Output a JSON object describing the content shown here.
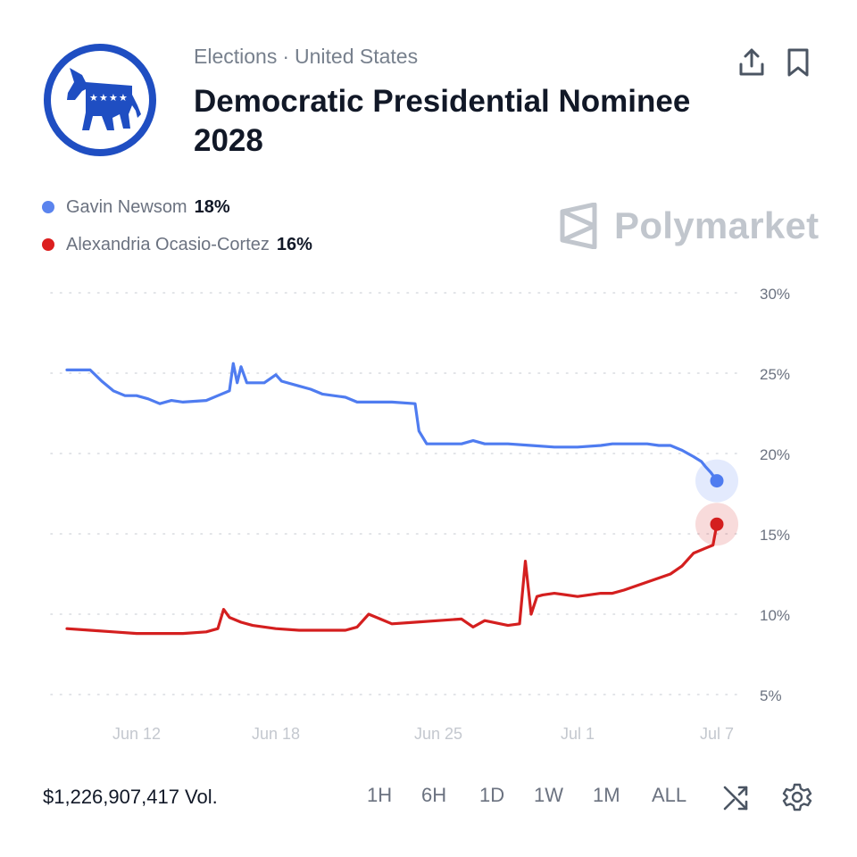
{
  "header": {
    "breadcrumb": [
      "Elections",
      "United States"
    ],
    "breadcrumb_separator": "·",
    "title": "Democratic Presidential Nominee 2028",
    "logo_icon": "democratic-donkey-icon",
    "actions": [
      {
        "name": "share",
        "icon": "share-upload-icon"
      },
      {
        "name": "bookmark",
        "icon": "bookmark-icon"
      }
    ]
  },
  "legend": [
    {
      "name": "Gavin Newsom",
      "value": "18%",
      "color": "#4f7cf0"
    },
    {
      "name": "Alexandria Ocasio-Cortez",
      "value": "16%",
      "color": "#dc2020"
    }
  ],
  "watermark": "Polymarket",
  "colors": {
    "newsom": "#4f7cf0",
    "aoc": "#d41f1f",
    "grid": "#d8dbe0",
    "tick": "#6b7280",
    "tick_light": "#c4c8cf"
  },
  "chart_data": {
    "type": "line",
    "x_unit": "date",
    "xlim": [
      "2025-06-08",
      "2025-07-07"
    ],
    "ylim": [
      5,
      30
    ],
    "y_ticks": [
      "30%",
      "25%",
      "20%",
      "15%",
      "10%",
      "5%"
    ],
    "y_tick_values": [
      30,
      25,
      20,
      15,
      10,
      5
    ],
    "x_ticks": [
      "Jun 12",
      "Jun 18",
      "Jun 25",
      "Jul 1",
      "Jul 7"
    ],
    "x_tick_dates": [
      "2025-06-12",
      "2025-06-18",
      "2025-06-25",
      "2025-07-01",
      "2025-07-07"
    ],
    "grid": "horizontal dotted",
    "series": [
      {
        "name": "Gavin Newsom",
        "color": "#4f7cf0",
        "points": [
          [
            "2025-06-09",
            25.2
          ],
          [
            "2025-06-10",
            25.2
          ],
          [
            "2025-06-10 12:00",
            24.5
          ],
          [
            "2025-06-11",
            23.9
          ],
          [
            "2025-06-11 12:00",
            23.6
          ],
          [
            "2025-06-12",
            23.6
          ],
          [
            "2025-06-12 12:00",
            23.4
          ],
          [
            "2025-06-13",
            23.1
          ],
          [
            "2025-06-13 12:00",
            23.3
          ],
          [
            "2025-06-14",
            23.2
          ],
          [
            "2025-06-15",
            23.3
          ],
          [
            "2025-06-15 12:00",
            23.6
          ],
          [
            "2025-06-16",
            23.9
          ],
          [
            "2025-06-16 04:00",
            25.6
          ],
          [
            "2025-06-16 08:00",
            24.4
          ],
          [
            "2025-06-16 12:00",
            25.4
          ],
          [
            "2025-06-16 18:00",
            24.4
          ],
          [
            "2025-06-17 12:00",
            24.4
          ],
          [
            "2025-06-18",
            24.9
          ],
          [
            "2025-06-18 06:00",
            24.5
          ],
          [
            "2025-06-19",
            24.2
          ],
          [
            "2025-06-19 12:00",
            24.0
          ],
          [
            "2025-06-20",
            23.7
          ],
          [
            "2025-06-21",
            23.5
          ],
          [
            "2025-06-21 12:00",
            23.2
          ],
          [
            "2025-06-23",
            23.2
          ],
          [
            "2025-06-24",
            23.1
          ],
          [
            "2025-06-24 04:00",
            21.4
          ],
          [
            "2025-06-24 12:00",
            20.6
          ],
          [
            "2025-06-25",
            20.6
          ],
          [
            "2025-06-26",
            20.6
          ],
          [
            "2025-06-26 12:00",
            20.8
          ],
          [
            "2025-06-27",
            20.6
          ],
          [
            "2025-06-28",
            20.6
          ],
          [
            "2025-06-29",
            20.5
          ],
          [
            "2025-06-30",
            20.4
          ],
          [
            "2025-07-01",
            20.4
          ],
          [
            "2025-07-02",
            20.5
          ],
          [
            "2025-07-02 12:00",
            20.6
          ],
          [
            "2025-07-03",
            20.6
          ],
          [
            "2025-07-04",
            20.6
          ],
          [
            "2025-07-04 12:00",
            20.5
          ],
          [
            "2025-07-05",
            20.5
          ],
          [
            "2025-07-05 12:00",
            20.2
          ],
          [
            "2025-07-06",
            19.8
          ],
          [
            "2025-07-06 08:00",
            19.5
          ],
          [
            "2025-07-06 12:00",
            19.2
          ],
          [
            "2025-07-06 18:00",
            18.8
          ],
          [
            "2025-07-07",
            18.3
          ]
        ]
      },
      {
        "name": "Alexandria Ocasio-Cortez",
        "color": "#d41f1f",
        "points": [
          [
            "2025-06-09",
            9.1
          ],
          [
            "2025-06-10",
            9.0
          ],
          [
            "2025-06-11",
            8.9
          ],
          [
            "2025-06-12",
            8.8
          ],
          [
            "2025-06-13",
            8.8
          ],
          [
            "2025-06-14",
            8.8
          ],
          [
            "2025-06-15",
            8.9
          ],
          [
            "2025-06-15 12:00",
            9.1
          ],
          [
            "2025-06-15 18:00",
            10.3
          ],
          [
            "2025-06-16",
            9.8
          ],
          [
            "2025-06-16 12:00",
            9.5
          ],
          [
            "2025-06-17",
            9.3
          ],
          [
            "2025-06-18",
            9.1
          ],
          [
            "2025-06-19",
            9.0
          ],
          [
            "2025-06-20",
            9.0
          ],
          [
            "2025-06-21",
            9.0
          ],
          [
            "2025-06-21 12:00",
            9.2
          ],
          [
            "2025-06-22",
            10.0
          ],
          [
            "2025-06-22 12:00",
            9.7
          ],
          [
            "2025-06-23",
            9.4
          ],
          [
            "2025-06-24",
            9.5
          ],
          [
            "2025-06-25",
            9.6
          ],
          [
            "2025-06-26",
            9.7
          ],
          [
            "2025-06-26 12:00",
            9.2
          ],
          [
            "2025-06-27",
            9.6
          ],
          [
            "2025-06-28",
            9.3
          ],
          [
            "2025-06-28 12:00",
            9.4
          ],
          [
            "2025-06-28 18:00",
            13.3
          ],
          [
            "2025-06-29",
            10.0
          ],
          [
            "2025-06-29 06:00",
            11.1
          ],
          [
            "2025-06-29 12:00",
            11.2
          ],
          [
            "2025-06-30",
            11.3
          ],
          [
            "2025-07-01",
            11.1
          ],
          [
            "2025-07-02",
            11.3
          ],
          [
            "2025-07-02 12:00",
            11.3
          ],
          [
            "2025-07-03",
            11.5
          ],
          [
            "2025-07-04",
            12.0
          ],
          [
            "2025-07-05",
            12.5
          ],
          [
            "2025-07-05 12:00",
            13.0
          ],
          [
            "2025-07-06",
            13.8
          ],
          [
            "2025-07-06 12:00",
            14.1
          ],
          [
            "2025-07-06 20:00",
            14.3
          ],
          [
            "2025-07-07",
            15.6
          ]
        ]
      }
    ]
  },
  "footer": {
    "volume": "$1,226,907,417 Vol.",
    "ranges": [
      "1H",
      "6H",
      "1D",
      "1W",
      "1M",
      "ALL"
    ],
    "icons": [
      "shuffle-icon",
      "settings-gear-icon"
    ]
  }
}
